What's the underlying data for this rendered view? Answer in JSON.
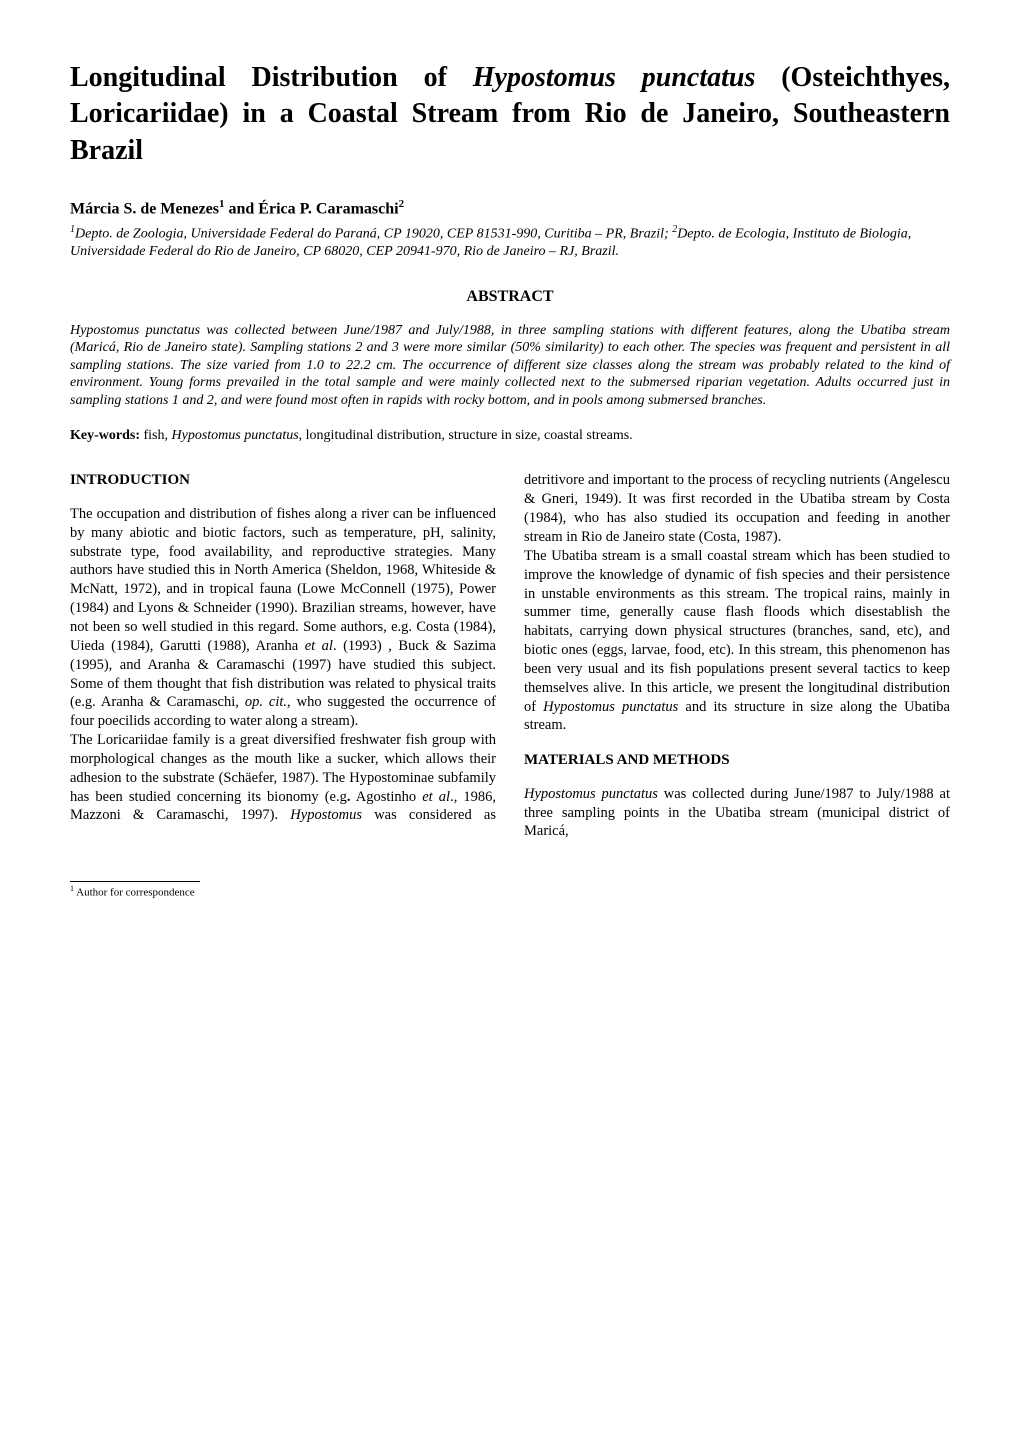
{
  "title_html": "Longitudinal Distribution of <em>Hypostomus punctatus</em> (Osteichthyes, Loricariidae) in a Coastal Stream from Rio de Janeiro, Southeastern Brazil",
  "authors_html": "Márcia S. de Menezes<sup>1</sup> and Érica P. Caramaschi<sup>2</sup>",
  "affiliations_html": "<sup>1</sup>Depto. de Zoologia, Universidade Federal do Paraná, CP 19020, CEP 81531-990, Curitiba – PR, Brazil; <sup>2</sup>Depto. de Ecologia, Instituto de Biologia, Universidade Federal do Rio de Janeiro, CP 68020, CEP 20941-970, Rio de Janeiro – RJ, Brazil.",
  "abstract": {
    "heading": "ABSTRACT",
    "body": "Hypostomus punctatus was collected between June/1987 and July/1988, in three sampling stations with different features, along the Ubatiba stream (Maricá, Rio de Janeiro state). Sampling stations 2 and 3 were more similar (50% similarity) to each other. The species was frequent and persistent in all sampling stations. The size varied from 1.0 to 22.2 cm. The occurrence of different size classes along the stream was probably related to the kind of environment. Young forms prevailed in the total sample and were mainly collected next to the submersed riparian vegetation. Adults occurred just in sampling stations 1 and 2, and were found most often in rapids with rocky bottom, and in pools among submersed branches."
  },
  "keywords": {
    "label": "Key-words:",
    "text_html": " fish, <em>Hypostomus punctatus</em>, longitudinal distribution, structure in size, coastal streams."
  },
  "sections": {
    "intro_heading": "INTRODUCTION",
    "intro_p1_html": "The occupation and distribution of fishes along a river can be influenced by many abiotic and biotic factors, such as temperature, pH, salinity, substrate type, food availability, and reproductive strategies. Many authors have studied this in North America (Sheldon, 1968, Whiteside & McNatt, 1972), and in tropical fauna (Lowe McConnell (1975), Power (1984) and Lyons & Schneider (1990). Brazilian streams, however, have not been so well studied in this regard. Some authors, e.g. Costa (1984), Uieda (1984), Garutti (1988), Aranha <em>et al</em>. (1993) , Buck & Sazima (1995), and Aranha & Caramaschi (1997) have studied this subject. Some of them thought that fish distribution was related to physical traits (e.g. Aranha & Caramaschi, <em>op. cit.</em>, who suggested the occurrence of four poecilids  according to water along a stream).",
    "intro_p2_html": "The Loricariidae family is a great diversified freshwater fish group with morphological changes as the mouth like a sucker, which allows their adhesion to the substrate (Schäefer, 1987). The Hypostominae subfamily has been studied concerning its bionomy (e.g<b>.</b> Agostinho <em>et al</em>., 1986, Mazzoni & Caramaschi, 1997). <em>Hypostomus</em> was considered as detritivore and important to the process of recycling nutrients (Angelescu & Gneri, 1949). It was first recorded in the Ubatiba stream by Costa (1984), who has also studied its occupation and feeding in another stream in Rio de Janeiro state (Costa, 1987).",
    "intro_p3_html": "The Ubatiba stream is a small coastal stream which has been studied to improve the knowledge of dynamic of fish species and their  persistence in unstable environments as this stream. The tropical rains, mainly in summer time, generally cause flash floods which disestablish the habitats, carrying down physical structures (branches, sand, etc), and biotic ones (eggs, larvae, food, etc). In this stream, this phenomenon has been very usual and its fish populations present several tactics  to keep themselves alive. In this article, we present the longitudinal distribution of <em>Hypostomus punctatus</em> and its structure in size along the Ubatiba stream.",
    "methods_heading": "MATERIALS AND METHODS",
    "methods_p1_html": "<em>Hypostomus punctatus</em> was collected during June/1987 to July/1988 at three sampling points in the Ubatiba stream (municipal district of Maricá,"
  },
  "footnote_html": "<sup>1</sup> Author for correspondence"
}
